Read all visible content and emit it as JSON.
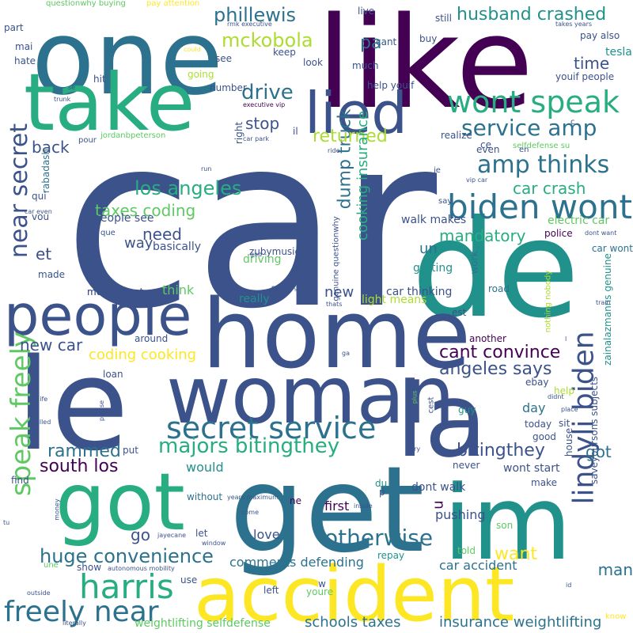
{
  "colors": {
    "background": "#ffffff",
    "palette": [
      "#440154",
      "#3b528b",
      "#21918c",
      "#5ec962",
      "#fde725",
      "#2c728e",
      "#472d7b",
      "#addc30",
      "#27ad81"
    ]
  },
  "words": [
    {
      "text": "car",
      "color": "#3b528b"
    },
    {
      "text": "de",
      "color": "#21918c"
    },
    {
      "text": "like",
      "color": "#440154"
    },
    {
      "text": "one",
      "color": "#2c728e"
    },
    {
      "text": "take",
      "color": "#27ad81"
    },
    {
      "text": "home",
      "color": "#3b528b"
    },
    {
      "text": "get",
      "color": "#2c728e"
    },
    {
      "text": "le",
      "color": "#3b528b"
    },
    {
      "text": "woman",
      "color": "#3b528b"
    },
    {
      "text": "la",
      "color": "#3b528b"
    },
    {
      "text": "im",
      "color": "#21918c"
    },
    {
      "text": "got",
      "color": "#27ad81"
    },
    {
      "text": "accident",
      "color": "#fde725"
    },
    {
      "text": "people",
      "color": "#3b528b"
    },
    {
      "text": "lied",
      "color": "#3b528b"
    },
    {
      "text": "wont speak",
      "color": "#27ad81"
    },
    {
      "text": "biden wont",
      "color": "#2c728e"
    },
    {
      "text": "secret service",
      "color": "#2c728e"
    },
    {
      "text": "lindyli biden",
      "color": "#3b528b"
    },
    {
      "text": "harris",
      "color": "#27ad81"
    },
    {
      "text": "freely near",
      "color": "#2c728e"
    },
    {
      "text": "speak freely",
      "color": "#5ec962"
    },
    {
      "text": "near secret",
      "color": "#3b528b"
    },
    {
      "text": "service amp",
      "color": "#2c728e"
    },
    {
      "text": "amp thinks",
      "color": "#2c728e"
    },
    {
      "text": "majors bitingthey",
      "color": "#27ad81"
    },
    {
      "text": "huge convenience",
      "color": "#2c728e"
    },
    {
      "text": "otherwise",
      "color": "#2c728e"
    },
    {
      "text": "phillewis",
      "color": "#2c728e"
    },
    {
      "text": "husband crashed",
      "color": "#21918c"
    },
    {
      "text": "mckobola",
      "color": "#addc30"
    },
    {
      "text": "drive",
      "color": "#2c728e"
    },
    {
      "text": "pa",
      "color": "#2c728e"
    },
    {
      "text": "tesla",
      "color": "#21918c"
    },
    {
      "text": "time",
      "color": "#3b528b"
    },
    {
      "text": "los angeles",
      "color": "#27ad81"
    },
    {
      "text": "taxes coding",
      "color": "#5ec962"
    },
    {
      "text": "dump truck",
      "color": "#2c728e"
    },
    {
      "text": "returned",
      "color": "#addc30"
    },
    {
      "text": "stop",
      "color": "#3b528b"
    },
    {
      "text": "back",
      "color": "#3b528b"
    },
    {
      "text": "car crash",
      "color": "#27ad81"
    },
    {
      "text": "mandatory",
      "color": "#27ad81"
    },
    {
      "text": "cant convince",
      "color": "#440154"
    },
    {
      "text": "angeles says",
      "color": "#3b528b"
    },
    {
      "text": "rammed",
      "color": "#2c728e"
    },
    {
      "text": "south los",
      "color": "#440154"
    },
    {
      "text": "bitingthey",
      "color": "#3b528b"
    },
    {
      "text": "new car",
      "color": "#3b528b"
    },
    {
      "text": "coding cooking",
      "color": "#fde725"
    },
    {
      "text": "cooking insurance",
      "color": "#27ad81"
    },
    {
      "text": "need",
      "color": "#3b528b"
    },
    {
      "text": "et",
      "color": "#3b528b"
    },
    {
      "text": "un",
      "color": "#2c728e"
    },
    {
      "text": "new",
      "color": "#3b528b"
    },
    {
      "text": "want",
      "color": "#fde725"
    },
    {
      "text": "go",
      "color": "#3b528b"
    },
    {
      "text": "got",
      "color": "#2c728e"
    },
    {
      "text": "u",
      "color": "#440154"
    },
    {
      "text": "man",
      "color": "#2c728e"
    },
    {
      "text": "insurance weightlifting",
      "color": "#2c728e"
    },
    {
      "text": "weightlifting selfdefense",
      "color": "#5ec962"
    },
    {
      "text": "schools taxes",
      "color": "#2c728e"
    },
    {
      "text": "comments defending",
      "color": "#2c728e"
    },
    {
      "text": "car accident",
      "color": "#2c728e"
    },
    {
      "text": "pushing",
      "color": "#3b528b"
    },
    {
      "text": "dont walk",
      "color": "#3b528b"
    },
    {
      "text": "first",
      "color": "#440154"
    },
    {
      "text": "love",
      "color": "#3b528b"
    },
    {
      "text": "would",
      "color": "#21918c"
    },
    {
      "text": "think",
      "color": "#5ec962"
    },
    {
      "text": "driving",
      "color": "#5ec962"
    },
    {
      "text": "basically",
      "color": "#3b528b"
    },
    {
      "text": "way",
      "color": "#3b528b"
    },
    {
      "text": "people see",
      "color": "#3b528b"
    },
    {
      "text": "walk makes",
      "color": "#3b528b"
    },
    {
      "text": "car thinking",
      "color": "#3b528b"
    },
    {
      "text": "light means",
      "color": "#addc30"
    },
    {
      "text": "getting",
      "color": "#21918c"
    },
    {
      "text": "police",
      "color": "#440154"
    },
    {
      "text": "car wont",
      "color": "#2c728e"
    },
    {
      "text": "electric car",
      "color": "#5ec962"
    },
    {
      "text": "means dont",
      "color": "#3b528b"
    },
    {
      "text": "made",
      "color": "#3b528b"
    },
    {
      "text": "really",
      "color": "#21918c"
    },
    {
      "text": "saveyoursons subjects",
      "color": "#3b528b"
    },
    {
      "text": "zainalazmanns genuine",
      "color": "#21918c"
    },
    {
      "text": "wont start",
      "color": "#3b528b"
    },
    {
      "text": "make",
      "color": "#3b528b"
    },
    {
      "text": "day",
      "color": "#2c728e"
    },
    {
      "text": "today",
      "color": "#3b528b"
    },
    {
      "text": "good",
      "color": "#3b528b"
    },
    {
      "text": "sit",
      "color": "#3b528b"
    },
    {
      "text": "house",
      "color": "#3b528b"
    },
    {
      "text": "ebay",
      "color": "#3b528b"
    },
    {
      "text": "help",
      "color": "#addc30"
    },
    {
      "text": "guy",
      "color": "#21918c"
    },
    {
      "text": "never",
      "color": "#3b528b"
    },
    {
      "text": "told",
      "color": "#5ec962"
    },
    {
      "text": "son",
      "color": "#5ec962"
    },
    {
      "text": "repay",
      "color": "#21918c"
    },
    {
      "text": "means dont",
      "color": "#3b528b"
    },
    {
      "text": "around",
      "color": "#3b528b"
    },
    {
      "text": "loan",
      "color": "#3b528b"
    },
    {
      "text": "put",
      "color": "#3b528b"
    },
    {
      "text": "find",
      "color": "#3b528b"
    },
    {
      "text": "let",
      "color": "#3b528b"
    },
    {
      "text": "without",
      "color": "#2c728e"
    },
    {
      "text": "use",
      "color": "#3b528b"
    },
    {
      "text": "show",
      "color": "#3b528b"
    },
    {
      "text": "left",
      "color": "#3b528b"
    },
    {
      "text": "youre",
      "color": "#5ec962"
    },
    {
      "text": "ne",
      "color": "#440154"
    },
    {
      "text": "du",
      "color": "#21918c"
    },
    {
      "text": "p",
      "color": "#3b528b"
    },
    {
      "text": "est",
      "color": "#3b528b"
    },
    {
      "text": "another",
      "color": "#440154"
    },
    {
      "text": "road",
      "color": "#2c728e"
    },
    {
      "text": "work",
      "color": "#2c728e"
    },
    {
      "text": "nothing nobody",
      "color": "#addc30"
    },
    {
      "text": "genuine questionwhy",
      "color": "#3b528b"
    },
    {
      "text": "right",
      "color": "#3b528b"
    },
    {
      "text": "zubymusic",
      "color": "#3b528b"
    },
    {
      "text": "number",
      "color": "#3b528b"
    },
    {
      "text": "hit",
      "color": "#3b528b"
    },
    {
      "text": "going",
      "color": "#addc30"
    },
    {
      "text": "see",
      "color": "#3b528b"
    },
    {
      "text": "keep",
      "color": "#3b528b"
    },
    {
      "text": "look",
      "color": "#3b528b"
    },
    {
      "text": "much",
      "color": "#3b528b"
    },
    {
      "text": "help youif",
      "color": "#3b528b"
    },
    {
      "text": "cant",
      "color": "#3b528b"
    },
    {
      "text": "live",
      "color": "#3b528b"
    },
    {
      "text": "buy",
      "color": "#3b528b"
    },
    {
      "text": "still",
      "color": "#3b528b"
    },
    {
      "text": "pay also",
      "color": "#3b528b"
    },
    {
      "text": "youif people",
      "color": "#3b528b"
    },
    {
      "text": "realize",
      "color": "#3b528b"
    },
    {
      "text": "ce",
      "color": "#3b528b"
    },
    {
      "text": "even",
      "color": "#3b528b"
    },
    {
      "text": "selfdefense su",
      "color": "#5ec962"
    },
    {
      "text": "jordanbpeterson",
      "color": "#5ec962"
    },
    {
      "text": "pour",
      "color": "#3b528b"
    },
    {
      "text": "car park",
      "color": "#3b528b"
    },
    {
      "text": "executive vip",
      "color": "#440154"
    },
    {
      "text": "rmk executive",
      "color": "#3b528b"
    },
    {
      "text": "il",
      "color": "#3b528b"
    },
    {
      "text": "ride",
      "color": "#3b528b"
    },
    {
      "text": "rabadash",
      "color": "#2c728e"
    },
    {
      "text": "qui",
      "color": "#3b528b"
    },
    {
      "text": "vou",
      "color": "#3b528b"
    },
    {
      "text": "que",
      "color": "#3b528b"
    },
    {
      "text": "je",
      "color": "#3b528b"
    },
    {
      "text": "say",
      "color": "#3b528b"
    },
    {
      "text": "point",
      "color": "#3b528b"
    },
    {
      "text": "vip car",
      "color": "#3b528b"
    },
    {
      "text": "run",
      "color": "#3b528b"
    },
    {
      "text": "mai",
      "color": "#3b528b"
    },
    {
      "text": "part",
      "color": "#3b528b"
    },
    {
      "text": "hate",
      "color": "#3b528b"
    },
    {
      "text": "questionwhy buying",
      "color": "#5ec962"
    },
    {
      "text": "pay attention",
      "color": "#fde725"
    },
    {
      "text": "takes years",
      "color": "#3b528b"
    },
    {
      "text": "could",
      "color": "#fde725"
    },
    {
      "text": "se",
      "color": "#3b528b"
    },
    {
      "text": "trunk",
      "color": "#3b528b"
    },
    {
      "text": "car even",
      "color": "#3b528b"
    },
    {
      "text": "god",
      "color": "#3b528b"
    },
    {
      "text": "morning",
      "color": "#3b528b"
    },
    {
      "text": "thats",
      "color": "#3b528b"
    },
    {
      "text": "train",
      "color": "#3b528b"
    },
    {
      "text": "dont want",
      "color": "#3b528b"
    },
    {
      "text": "ga",
      "color": "#3b528b"
    },
    {
      "text": "yall",
      "color": "#3b528b"
    },
    {
      "text": "life",
      "color": "#3b528b"
    },
    {
      "text": "killed",
      "color": "#3b528b"
    },
    {
      "text": "please",
      "color": "#3b528b"
    },
    {
      "text": "years maximum",
      "color": "#3b528b"
    },
    {
      "text": "come",
      "color": "#3b528b"
    },
    {
      "text": "money",
      "color": "#3b528b"
    },
    {
      "text": "tu",
      "color": "#3b528b"
    },
    {
      "text": "jayecane",
      "color": "#3b528b"
    },
    {
      "text": "window",
      "color": "#3b528b"
    },
    {
      "text": "inside",
      "color": "#3b528b"
    },
    {
      "text": "une",
      "color": "#5ec962"
    },
    {
      "text": "autonomous mobility",
      "color": "#3b528b"
    },
    {
      "text": "outside",
      "color": "#3b528b"
    },
    {
      "text": "literally",
      "color": "#3b528b"
    },
    {
      "text": "know",
      "color": "#fde725"
    },
    {
      "text": "plus",
      "color": "#5ec962"
    },
    {
      "text": "cest",
      "color": "#3b528b"
    },
    {
      "text": "try",
      "color": "#3b528b"
    },
    {
      "text": "w",
      "color": "#3b528b"
    },
    {
      "text": "didnt",
      "color": "#3b528b"
    },
    {
      "text": "place",
      "color": "#3b528b"
    },
    {
      "text": "id",
      "color": "#3b528b"
    },
    {
      "text": "en",
      "color": "#3b528b"
    },
    {
      "text": "l",
      "color": "#3b528b"
    },
    {
      "text": "c",
      "color": "#3b528b"
    }
  ]
}
